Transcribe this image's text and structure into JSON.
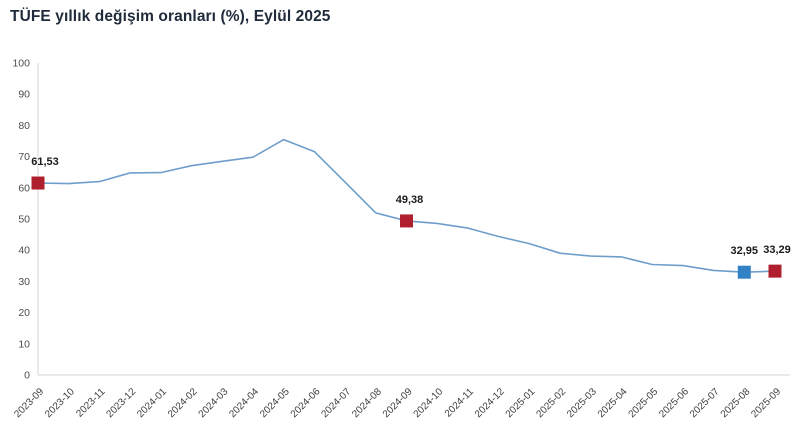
{
  "title": "TÜFE yıllık değişim oranları (%), Eylül 2025",
  "colors": {
    "line": "#6f9ecb",
    "marker_red": "#b01f2e",
    "marker_blue": "#3181c4",
    "axis": "#d6d6d6",
    "tick_label": "#4d4d4d",
    "x_label": "#3f3f3f",
    "data_label": "#1a1a1a",
    "title": "#1f2a3a"
  },
  "chart_data": {
    "type": "line",
    "title": "TÜFE yıllık değişim oranları (%), Eylül 2025",
    "xlabel": "",
    "ylabel": "",
    "ylim": [
      0,
      100
    ],
    "y_tick_step": 10,
    "grid": false,
    "legend": false,
    "x": [
      "2023-09",
      "2023-10",
      "2023-11",
      "2023-12",
      "2024-01",
      "2024-02",
      "2024-03",
      "2024-04",
      "2024-05",
      "2024-06",
      "2024-07",
      "2024-08",
      "2024-09",
      "2024-10",
      "2024-11",
      "2024-12",
      "2025-01",
      "2025-02",
      "2025-03",
      "2025-04",
      "2025-05",
      "2025-06",
      "2025-07",
      "2025-08",
      "2025-09"
    ],
    "values": [
      61.53,
      61.36,
      61.98,
      64.77,
      64.86,
      67.07,
      68.5,
      69.8,
      75.45,
      71.6,
      61.78,
      51.97,
      49.38,
      48.58,
      47.09,
      44.38,
      42.12,
      39.05,
      38.1,
      37.86,
      35.41,
      35.05,
      33.52,
      32.95,
      33.29
    ],
    "markers": [
      {
        "x": "2023-09",
        "value": 61.53,
        "label": "61,53",
        "color": "#b01f2e",
        "label_dx": 7
      },
      {
        "x": "2024-09",
        "value": 49.38,
        "label": "49,38",
        "color": "#b01f2e",
        "label_dx": 3
      },
      {
        "x": "2025-08",
        "value": 32.95,
        "label": "32,95",
        "color": "#3181c4",
        "label_dx": 0
      },
      {
        "x": "2025-09",
        "value": 33.29,
        "label": "33,29",
        "color": "#b01f2e",
        "label_dx": 2
      }
    ]
  }
}
